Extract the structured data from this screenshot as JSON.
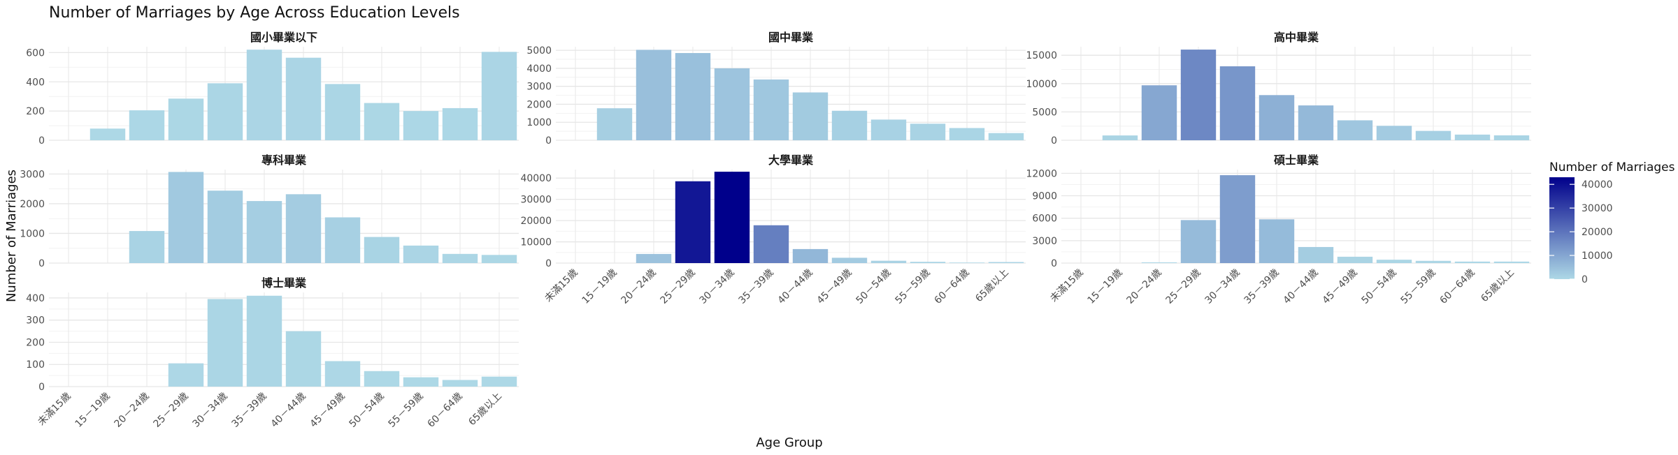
{
  "chart_data": {
    "type": "bar",
    "title": "Number of Marriages by Age Across Education Levels",
    "xlabel": "Age Group",
    "ylabel": "Number of Marriages",
    "categories": [
      "未滿15歲",
      "15－19歲",
      "20－24歲",
      "25－29歲",
      "30－34歲",
      "35－39歲",
      "40－44歲",
      "45－49歲",
      "50－54歲",
      "55－59歲",
      "60－64歲",
      "65歲以上"
    ],
    "grid": true,
    "legend": {
      "title": "Number of Marriages",
      "position": "right",
      "ticks": [
        0,
        10000,
        20000,
        30000,
        40000
      ],
      "range": [
        0,
        43000
      ],
      "color_low": "#add8e6",
      "color_high": "#00008b"
    },
    "series": [
      {
        "name": "國小畢業以下",
        "values": [
          0,
          80,
          205,
          285,
          390,
          620,
          565,
          385,
          255,
          200,
          220,
          605
        ],
        "ylim": [
          0,
          640
        ],
        "yticks": [
          0,
          200,
          400,
          600
        ]
      },
      {
        "name": "國中畢業",
        "values": [
          0,
          1780,
          5030,
          4850,
          4000,
          3380,
          2660,
          1640,
          1150,
          920,
          680,
          400
        ],
        "ylim": [
          0,
          5200
        ],
        "yticks": [
          0,
          1000,
          2000,
          3000,
          4000,
          5000
        ]
      },
      {
        "name": "高中畢業",
        "values": [
          0,
          850,
          9700,
          16000,
          13050,
          7970,
          6150,
          3520,
          2550,
          1650,
          1000,
          870
        ],
        "ylim": [
          0,
          16500
        ],
        "yticks": [
          0,
          5000,
          10000,
          15000
        ]
      },
      {
        "name": "專科畢業",
        "values": [
          0,
          0,
          1080,
          3070,
          2440,
          2090,
          2320,
          1540,
          880,
          590,
          310,
          275
        ],
        "ylim": [
          0,
          3150
        ],
        "yticks": [
          0,
          1000,
          2000,
          3000
        ]
      },
      {
        "name": "大學畢業",
        "values": [
          0,
          0,
          4300,
          38500,
          43000,
          17800,
          6600,
          2500,
          1100,
          600,
          250,
          500
        ],
        "ylim": [
          0,
          44000
        ],
        "yticks": [
          0,
          10000,
          20000,
          30000,
          40000
        ]
      },
      {
        "name": "碩士畢業",
        "values": [
          0,
          0,
          100,
          5750,
          11750,
          5850,
          2150,
          850,
          450,
          300,
          200,
          200
        ],
        "ylim": [
          0,
          12500
        ],
        "yticks": [
          0,
          3000,
          6000,
          9000,
          12000
        ]
      },
      {
        "name": "博士畢業",
        "values": [
          0,
          0,
          0,
          105,
          395,
          410,
          250,
          115,
          70,
          42,
          30,
          45
        ],
        "ylim": [
          0,
          425
        ],
        "yticks": [
          0,
          100,
          200,
          300,
          400
        ]
      }
    ]
  }
}
